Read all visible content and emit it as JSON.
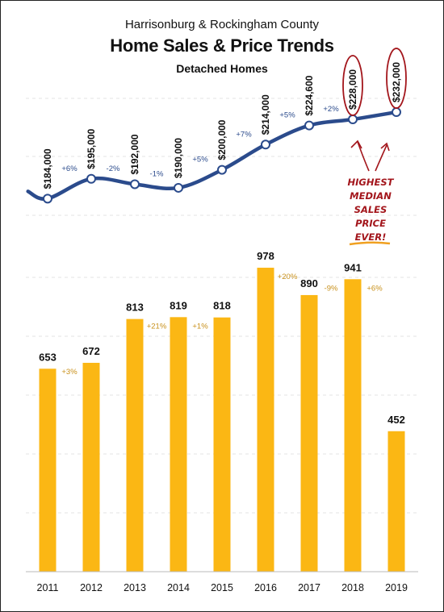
{
  "header": {
    "region": "Harrisonburg & Rockingham County",
    "title": "Home Sales & Price Trends",
    "subtitle": "Detached Homes"
  },
  "annotation": {
    "lines": [
      "HIGHEST",
      "MEDIAN",
      "SALES",
      "PRICE",
      "EVER!"
    ],
    "color": "#a3161c",
    "underline_color": "#f0a020"
  },
  "chart_data": [
    {
      "type": "line",
      "x": [
        "2011",
        "2012",
        "2013",
        "2014",
        "2015",
        "2016",
        "2017",
        "2018",
        "2019"
      ],
      "values": [
        184000,
        195000,
        192000,
        190000,
        200000,
        214000,
        224600,
        228000,
        232000
      ],
      "value_labels": [
        "$184,000",
        "$195,000",
        "$192,000",
        "$190,000",
        "$200,000",
        "$214,000",
        "$224,600",
        "$228,000",
        "$232,000"
      ],
      "changes": [
        "+6%",
        "-2%",
        "-1%",
        "+5%",
        "+7%",
        "+5%",
        "+2%",
        ""
      ],
      "ylim": [
        160000,
        245000
      ],
      "color": "#2b4b8c",
      "grid": true,
      "circled": [
        "2018",
        "2019"
      ]
    },
    {
      "type": "bar",
      "categories": [
        "2011",
        "2012",
        "2013",
        "2014",
        "2015",
        "2016",
        "2017",
        "2018",
        "2019"
      ],
      "values": [
        653,
        672,
        813,
        819,
        818,
        978,
        890,
        941,
        452
      ],
      "value_labels": [
        "653",
        "672",
        "813",
        "819",
        "818",
        "978",
        "890",
        "941",
        "452"
      ],
      "changes": [
        "+3%",
        "",
        "+21%",
        "+1%",
        "",
        "+20%",
        "-9%",
        "+6%",
        ""
      ],
      "ylim": [
        0,
        1100
      ],
      "color": "#fbb714",
      "grid": true
    }
  ]
}
